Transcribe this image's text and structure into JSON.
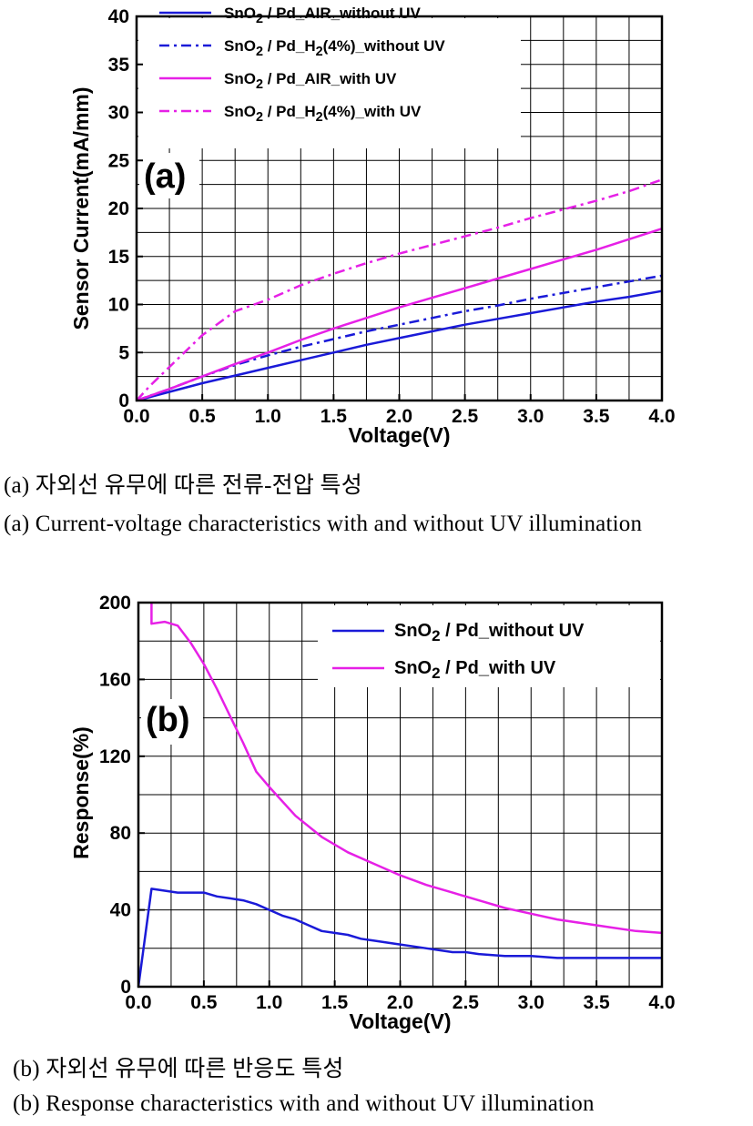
{
  "chart_data": [
    {
      "type": "line",
      "panel_label": "(a)",
      "xlabel": "Voltage(V)",
      "ylabel": "Sensor Current(mA/mm)",
      "xlim": [
        0,
        4
      ],
      "ylim": [
        0,
        40
      ],
      "xticks": [
        "0.0",
        "0.5",
        "1.0",
        "1.5",
        "2.0",
        "2.5",
        "3.0",
        "3.5",
        "4.0"
      ],
      "yticks": [
        "0",
        "5",
        "10",
        "15",
        "20",
        "25",
        "30",
        "35",
        "40"
      ],
      "grid": true,
      "legend_position": "top-left",
      "series": [
        {
          "name_main": "SnO",
          "name_sub": "2",
          "name_rest": " / Pd_AIR_without UV",
          "color": "#1a1ad8",
          "dash": "solid",
          "x": [
            0,
            0.25,
            0.5,
            0.75,
            1.0,
            1.25,
            1.5,
            1.75,
            2.0,
            2.25,
            2.5,
            2.75,
            3.0,
            3.25,
            3.5,
            3.75,
            4.0
          ],
          "y": [
            0,
            0.9,
            1.8,
            2.6,
            3.4,
            4.2,
            5.0,
            5.8,
            6.5,
            7.2,
            7.9,
            8.5,
            9.1,
            9.7,
            10.3,
            10.8,
            11.4
          ]
        },
        {
          "name_main": "SnO",
          "name_sub": "2",
          "name_rest": " / Pd_H",
          "name_sub2": "2",
          "name_rest2": "(4%)_without UV",
          "color": "#1a1ad8",
          "dash": "dashdot",
          "x": [
            0,
            0.25,
            0.5,
            0.75,
            1.0,
            1.25,
            1.5,
            1.75,
            2.0,
            2.25,
            2.5,
            2.75,
            3.0,
            3.25,
            3.5,
            3.75,
            4.0
          ],
          "y": [
            0,
            1.2,
            2.5,
            3.7,
            4.7,
            5.6,
            6.4,
            7.2,
            7.9,
            8.6,
            9.3,
            9.9,
            10.6,
            11.2,
            11.8,
            12.4,
            13.0
          ]
        },
        {
          "name_main": "SnO",
          "name_sub": "2",
          "name_rest": " / Pd_AIR_with UV",
          "color": "#e620e6",
          "dash": "solid",
          "x": [
            0,
            0.25,
            0.5,
            0.75,
            1.0,
            1.25,
            1.5,
            1.75,
            2.0,
            2.25,
            2.5,
            2.75,
            3.0,
            3.25,
            3.5,
            3.75,
            4.0
          ],
          "y": [
            0,
            1.2,
            2.5,
            3.8,
            5.0,
            6.3,
            7.5,
            8.6,
            9.7,
            10.7,
            11.7,
            12.7,
            13.7,
            14.7,
            15.7,
            16.8,
            17.9
          ]
        },
        {
          "name_main": "SnO",
          "name_sub": "2",
          "name_rest": " / Pd_H",
          "name_sub2": "2",
          "name_rest2": "(4%)_with UV",
          "color": "#e620e6",
          "dash": "dashdot",
          "x": [
            0,
            0.1,
            0.25,
            0.5,
            0.75,
            1.0,
            1.25,
            1.5,
            1.75,
            2.0,
            2.25,
            2.5,
            2.75,
            3.0,
            3.25,
            3.5,
            3.75,
            4.0
          ],
          "y": [
            0,
            1.5,
            3.5,
            6.8,
            9.3,
            10.5,
            12.0,
            13.2,
            14.3,
            15.3,
            16.2,
            17.1,
            18.0,
            19.0,
            19.9,
            20.8,
            21.8,
            23.0
          ]
        }
      ]
    },
    {
      "type": "line",
      "panel_label": "(b)",
      "xlabel": "Voltage(V)",
      "ylabel": "Response(%)",
      "xlim": [
        0,
        4
      ],
      "ylim": [
        0,
        200
      ],
      "xticks": [
        "0.0",
        "0.5",
        "1.0",
        "1.5",
        "2.0",
        "2.5",
        "3.0",
        "3.5",
        "4.0"
      ],
      "yticks": [
        "0",
        "40",
        "80",
        "120",
        "160",
        "200"
      ],
      "grid": true,
      "legend_position": "top-right",
      "series": [
        {
          "name_main": "SnO",
          "name_sub": "2",
          "name_rest": " / Pd_without UV",
          "color": "#1a1ad8",
          "dash": "solid",
          "x": [
            0,
            0.1,
            0.2,
            0.3,
            0.4,
            0.5,
            0.6,
            0.7,
            0.8,
            0.9,
            1.0,
            1.1,
            1.2,
            1.3,
            1.4,
            1.5,
            1.6,
            1.7,
            1.8,
            1.9,
            2.0,
            2.1,
            2.2,
            2.3,
            2.4,
            2.5,
            2.6,
            2.8,
            3.0,
            3.2,
            3.5,
            4.0
          ],
          "y": [
            0,
            51,
            50,
            49,
            49,
            49,
            47,
            46,
            45,
            43,
            40,
            37,
            35,
            32,
            29,
            28,
            27,
            25,
            24,
            23,
            22,
            21,
            20,
            19,
            18,
            18,
            17,
            16,
            16,
            15,
            15,
            15
          ]
        },
        {
          "name_main": "SnO",
          "name_sub": "2",
          "name_rest": " / Pd_with UV",
          "color": "#e620e6",
          "dash": "solid",
          "x": [
            0.1,
            0.1,
            0.2,
            0.3,
            0.4,
            0.5,
            0.6,
            0.7,
            0.8,
            0.9,
            1.0,
            1.2,
            1.4,
            1.6,
            1.8,
            2.0,
            2.2,
            2.4,
            2.6,
            2.8,
            3.0,
            3.2,
            3.4,
            3.6,
            3.8,
            4.0
          ],
          "y": [
            200,
            189,
            190,
            188,
            179,
            168,
            155,
            141,
            127,
            112,
            104,
            89,
            78,
            70,
            64,
            58,
            53,
            49,
            45,
            41,
            38,
            35,
            33,
            31,
            29,
            28
          ]
        }
      ]
    }
  ],
  "captions": {
    "a_korean": "(a) 자외선 유무에 따른 전류-전압 특성",
    "a_english": "(a) Current-voltage characteristics with and without UV illumination",
    "b_korean": "(b) 자외선 유무에 따른 반응도 특성",
    "b_english": "(b) Response characteristics with and without UV illumination"
  }
}
